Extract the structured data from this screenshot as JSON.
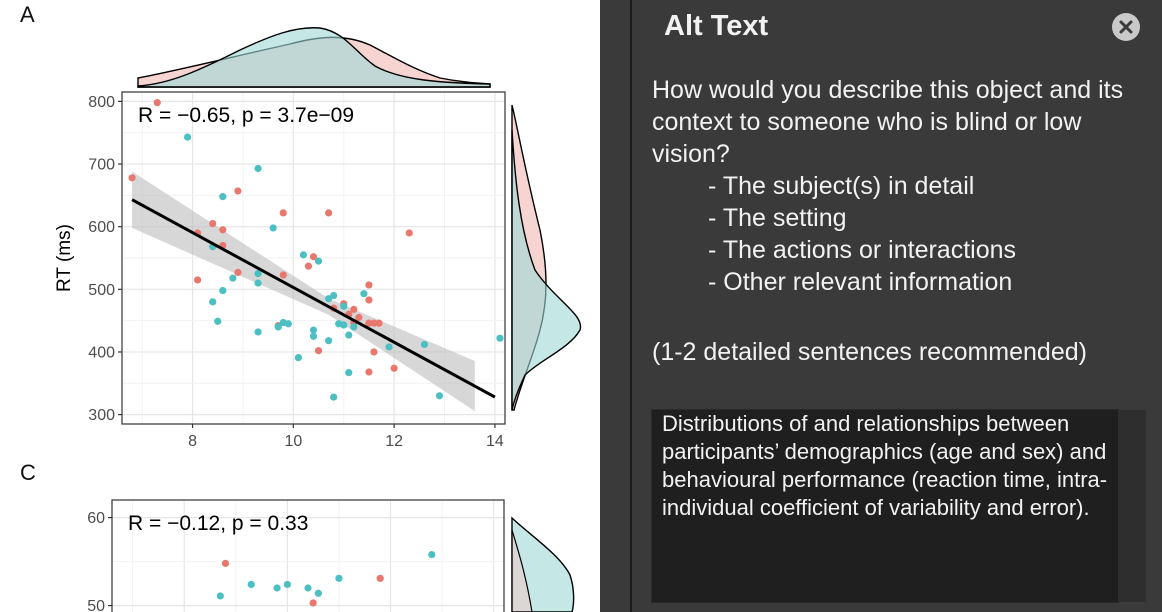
{
  "figure": {
    "panel_a_letter": "A",
    "panel_c_letter": "C",
    "chart_data": [
      {
        "type": "scatter",
        "panel": "A",
        "title": "",
        "annotation": "R = −0.65, p = 3.7e−09",
        "ylabel": "RT (ms)",
        "xlabel": "",
        "xlim": [
          6.6,
          14.2
        ],
        "ylim": [
          285,
          815
        ],
        "xticks": [
          "8",
          "10",
          "12",
          "14"
        ],
        "xtick_values": [
          8,
          10,
          12,
          14
        ],
        "yticks": [
          "300",
          "400",
          "500",
          "600",
          "700",
          "800"
        ],
        "ytick_values": [
          300,
          400,
          500,
          600,
          700,
          800
        ],
        "grid": true,
        "regression": {
          "x": [
            6.8,
            14.0
          ],
          "y": [
            643,
            328
          ]
        },
        "series": [
          {
            "color": "#e8776e",
            "points": [
              [
                7.3,
                798
              ],
              [
                6.8,
                678
              ],
              [
                8.9,
                657
              ],
              [
                8.1,
                590
              ],
              [
                8.4,
                605
              ],
              [
                8.6,
                595
              ],
              [
                8.6,
                570
              ],
              [
                8.1,
                515
              ],
              [
                8.9,
                527
              ],
              [
                9.8,
                622
              ],
              [
                10.7,
                622
              ],
              [
                12.3,
                590
              ],
              [
                9.8,
                523
              ],
              [
                10.3,
                537
              ],
              [
                10.4,
                552
              ],
              [
                11.5,
                507
              ],
              [
                11.5,
                483
              ],
              [
                11.0,
                477
              ],
              [
                11.2,
                468
              ],
              [
                10.8,
                470
              ],
              [
                11.3,
                455
              ],
              [
                11.1,
                460
              ],
              [
                11.2,
                447
              ],
              [
                11.6,
                446
              ],
              [
                11.7,
                446
              ],
              [
                11.5,
                446
              ],
              [
                9.7,
                442
              ],
              [
                10.5,
                402
              ],
              [
                11.6,
                400
              ],
              [
                11.5,
                368
              ],
              [
                12.0,
                374
              ]
            ]
          },
          {
            "color": "#4bbfc2",
            "points": [
              [
                7.9,
                743
              ],
              [
                9.3,
                693
              ],
              [
                8.6,
                648
              ],
              [
                9.6,
                598
              ],
              [
                8.4,
                568
              ],
              [
                10.2,
                555
              ],
              [
                10.5,
                545
              ],
              [
                9.3,
                525
              ],
              [
                8.8,
                518
              ],
              [
                9.3,
                510
              ],
              [
                8.6,
                498
              ],
              [
                8.4,
                480
              ],
              [
                10.8,
                490
              ],
              [
                10.7,
                485
              ],
              [
                11.4,
                493
              ],
              [
                11.0,
                473
              ],
              [
                9.8,
                447
              ],
              [
                9.9,
                445
              ],
              [
                9.7,
                440
              ],
              [
                10.9,
                445
              ],
              [
                11.0,
                443
              ],
              [
                11.2,
                440
              ],
              [
                10.4,
                435
              ],
              [
                10.4,
                425
              ],
              [
                11.1,
                427
              ],
              [
                9.3,
                432
              ],
              [
                8.5,
                449
              ],
              [
                10.7,
                418
              ],
              [
                11.9,
                408
              ],
              [
                12.6,
                412
              ],
              [
                14.1,
                422
              ],
              [
                10.1,
                391
              ],
              [
                11.1,
                367
              ],
              [
                10.8,
                328
              ],
              [
                12.9,
                330
              ]
            ]
          }
        ]
      },
      {
        "type": "scatter",
        "panel": "C",
        "title": "",
        "annotation": "R = −0.12, p = 0.33",
        "xlabel": "",
        "ylabel": "",
        "xlim": [
          6.6,
          14.2
        ],
        "ylim": [
          47,
          62
        ],
        "yticks": [
          "50",
          "60"
        ],
        "ytick_values": [
          50,
          60
        ],
        "grid": true,
        "series": [
          {
            "color": "#e8776e",
            "points": [
              [
                8.8,
                54.8
              ],
              [
                10.5,
                50.3
              ],
              [
                11.8,
                53.1
              ]
            ]
          },
          {
            "color": "#4bbfc2",
            "points": [
              [
                8.7,
                51.1
              ],
              [
                9.3,
                52.4
              ],
              [
                9.8,
                52.0
              ],
              [
                10.0,
                52.4
              ],
              [
                10.4,
                52.0
              ],
              [
                10.6,
                51.4
              ],
              [
                11.0,
                53.1
              ],
              [
                12.8,
                55.8
              ]
            ]
          }
        ]
      }
    ]
  },
  "alt_text_pane": {
    "title": "Alt Text",
    "prompt": "How would you describe this object and its context to someone who is blind or low vision?",
    "bullets": [
      "- The subject(s) in detail",
      "- The setting",
      "- The actions or interactions",
      "- Other relevant information"
    ],
    "recommendation": "(1-2 detailed sentences recommended)",
    "description_value": "Distributions of and relationships between participants’ demographics (age and sex) and behavioural performance (reaction time, intra-individual coefficient of variability and error)."
  },
  "colors": {
    "female": "#e8776e",
    "male": "#4bbfc2",
    "pane_bg": "#3a3a3a",
    "textarea_bg": "#1f1f1f"
  },
  "icons": {
    "close": "close-circle-icon"
  }
}
